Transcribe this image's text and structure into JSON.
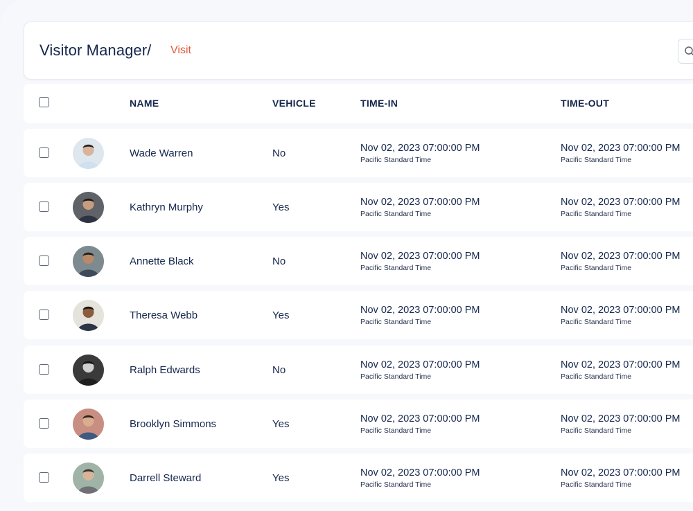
{
  "header": {
    "title": "Visitor Manager/",
    "breadcrumb": "Visit"
  },
  "table": {
    "columns": [
      "NAME",
      "VEHICLE",
      "TIME-IN",
      "TIME-OUT"
    ],
    "rows": [
      {
        "name": "Wade Warren",
        "vehicle": "No",
        "time_in": "Nov 02, 2023 07:00:00 PM",
        "time_in_tz": "Pacific Standard Time",
        "time_out": "Nov 02, 2023 07:00:00 PM",
        "time_out_tz": "Pacific Standard Time"
      },
      {
        "name": "Kathryn Murphy",
        "vehicle": "Yes",
        "time_in": "Nov 02, 2023 07:00:00 PM",
        "time_in_tz": "Pacific Standard Time",
        "time_out": "Nov 02, 2023 07:00:00 PM",
        "time_out_tz": "Pacific Standard Time"
      },
      {
        "name": "Annette Black",
        "vehicle": "No",
        "time_in": "Nov 02, 2023 07:00:00 PM",
        "time_in_tz": "Pacific Standard Time",
        "time_out": "Nov 02, 2023 07:00:00 PM",
        "time_out_tz": "Pacific Standard Time"
      },
      {
        "name": "Theresa Webb",
        "vehicle": "Yes",
        "time_in": "Nov 02, 2023 07:00:00 PM",
        "time_in_tz": "Pacific Standard Time",
        "time_out": "Nov 02, 2023 07:00:00 PM",
        "time_out_tz": "Pacific Standard Time"
      },
      {
        "name": "Ralph Edwards",
        "vehicle": "No",
        "time_in": "Nov 02, 2023 07:00:00 PM",
        "time_in_tz": "Pacific Standard Time",
        "time_out": "Nov 02, 2023 07:00:00 PM",
        "time_out_tz": "Pacific Standard Time"
      },
      {
        "name": "Brooklyn Simmons",
        "vehicle": "Yes",
        "time_in": "Nov 02, 2023 07:00:00 PM",
        "time_in_tz": "Pacific Standard Time",
        "time_out": "Nov 02, 2023 07:00:00 PM",
        "time_out_tz": "Pacific Standard Time"
      },
      {
        "name": "Darrell Steward",
        "vehicle": "Yes",
        "time_in": "Nov 02, 2023 07:00:00 PM",
        "time_in_tz": "Pacific Standard Time",
        "time_out": "Nov 02, 2023 07:00:00 PM",
        "time_out_tz": "Pacific Standard Time"
      }
    ]
  },
  "icons": {
    "search": "search-icon",
    "avatar": "user-photo"
  },
  "colors": {
    "text": "#14264d",
    "accent": "#e05a3d",
    "background": "#f7f8fc"
  }
}
